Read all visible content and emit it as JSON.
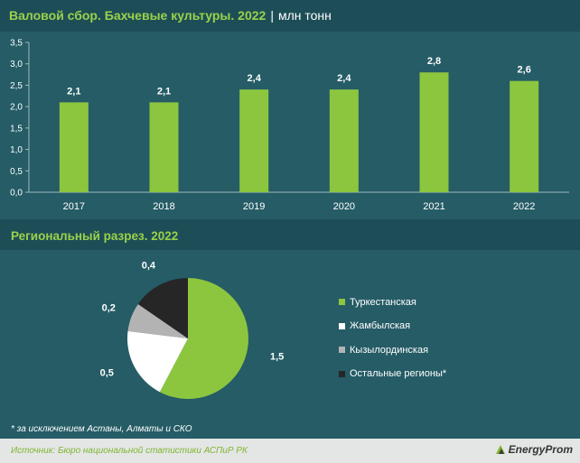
{
  "header": {
    "title": "Валовой сбор. Бахчевые культуры. 2022",
    "separator": "|",
    "unit": "млн тонн"
  },
  "region_header": {
    "title": "Региональный разрез. 2022"
  },
  "footnote": "* за исключением Астаны, Алматы и СКО",
  "source": "Источник: Бюро национальной статистики АСПиР РК",
  "logo": {
    "text": "EnergyProm"
  },
  "colors": {
    "bar": "#8cc63f",
    "bg": "#255c66",
    "band": "#1d4e57"
  },
  "chart_data": [
    {
      "type": "bar",
      "categories": [
        "2017",
        "2018",
        "2019",
        "2020",
        "2021",
        "2022"
      ],
      "values": [
        2.1,
        2.1,
        2.4,
        2.4,
        2.8,
        2.6
      ],
      "data_labels": [
        "2,1",
        "2,1",
        "2,4",
        "2,4",
        "2,8",
        "2,6"
      ],
      "yticks": [
        "0,0",
        "0,5",
        "1,0",
        "1,5",
        "2,0",
        "2,5",
        "3,0",
        "3,5"
      ],
      "ylim": [
        0,
        3.5
      ],
      "grid": false
    },
    {
      "type": "pie",
      "labels": [
        "Туркестанская",
        "Жамбылская",
        "Кызылординская",
        "Остальные регионы*"
      ],
      "values": [
        1.5,
        0.5,
        0.2,
        0.4
      ],
      "data_labels": [
        "1,5",
        "0,5",
        "0,2",
        "0,4"
      ],
      "colors": [
        "#8cc63f",
        "#ffffff",
        "#b3b3b3",
        "#262626"
      ],
      "legend": "right"
    }
  ]
}
